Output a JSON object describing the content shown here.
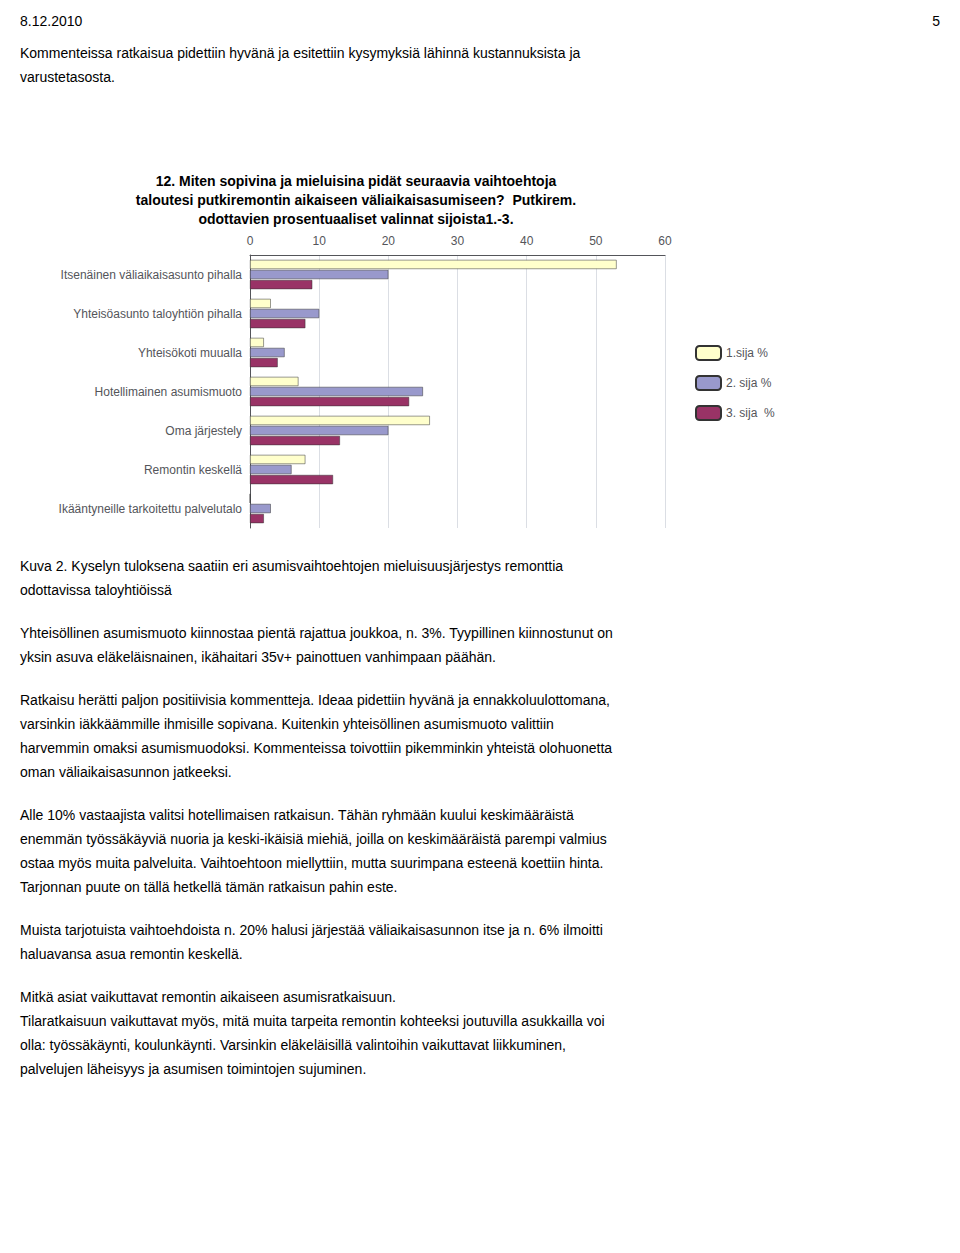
{
  "chart_data": {
    "type": "bar",
    "orientation": "horizontal",
    "title": "12. Miten sopivina ja mieluisina pidät seuraavia vaihtoehtoja\ntaloutesi putkiremontin aikaiseen väliaikaisasumiseen?  Putkirem.\nodottavien prosentuaaliset valinnat sijoista1.-3.",
    "categories": [
      "Itsenäinen väliaikaisasunto pihalla",
      "Yhteisöasunto taloyhtiön pihalla",
      "Yhteisökoti muualla",
      "Hotellimainen asumismuoto",
      "Oma järjestely",
      "Remontin keskellä",
      "Ikääntyneille tarkoitettu palvelutalo"
    ],
    "series": [
      {
        "name": "1.sija %",
        "color": "#FFFFCC",
        "values": [
          53,
          3,
          2,
          7,
          26,
          8,
          0
        ]
      },
      {
        "name": "2. sija %",
        "color": "#9999CC",
        "values": [
          20,
          10,
          5,
          25,
          20,
          6,
          3
        ]
      },
      {
        "name": "3. sija  %",
        "color": "#993366",
        "values": [
          9,
          8,
          4,
          23,
          13,
          12,
          2
        ]
      }
    ],
    "xlim": [
      0,
      60
    ],
    "xticks": [
      0,
      10,
      20,
      30,
      40,
      50,
      60
    ],
    "grid": true,
    "legend": "right",
    "annotations": [
      [
        "8.12.2010",
        "5"
      ],
      [
        "Kommenteissa ratkaisua pidettiin hyvänä ja esitettiin kysymyksiä lähinnä kustannuksista ja",
        "varustetasosta."
      ],
      [
        "Kuva 2. Kyselyn tuloksena saatiin eri asumisvaihtoehtojen mieluisuusjärjestys remonttia",
        "odottavissa taloyhtiöissä"
      ],
      [
        "Yhteisöllinen asumismuoto kiinnostaa pientä rajattua joukkoa, n. 3%. Tyypillinen kiinnostunut on",
        "yksin asuva eläkeläisnainen, ikähaitari 35v+ painottuen vanhimpaan päähän."
      ],
      [
        "Ratkaisu herätti paljon positiivisia kommentteja. Ideaa pidettiin hyvänä ja ennakkoluulottomana,",
        "varsinkin iäkkäämmille ihmisille sopivana. Kuitenkin yhteisöllinen asumismuoto valittiin",
        "harvemmin omaksi asumismuodoksi. Kommenteissa toivottiin pikemminkin yhteistä olohuonetta",
        "oman väliaikaisasunnon jatkeeksi."
      ],
      [
        "Alle 10% vastaajista valitsi hotellimaisen ratkaisun. Tähän ryhmään kuului keskimääräistä",
        "enemmän työssäkäyviä nuoria ja keski-ikäisiä miehiä, joilla on keskimääräistä parempi valmius",
        "ostaa myös muita palveluita. Vaihtoehtoon miellyttiin, mutta suurimpana esteenä koettiin hinta.",
        "Tarjonnan puute on tällä hetkellä tämän ratkaisun pahin este."
      ],
      [
        "Muista tarjotuista vaihtoehdoista n. 20% halusi järjestää väliaikaisasunnon itse ja n. 6% ilmoitti",
        "haluavansa asua remontin keskellä."
      ],
      [
        "Mitkä asiat vaikuttavat remontin aikaiseen asumisratkaisuun.",
        "Tilaratkaisuun vaikuttavat myös, mitä muita tarpeita remontin kohteeksi joutuvilla asukkailla voi",
        "olla: työssäkäynti, koulunkäynti. Varsinkin eläkeläisillä valintoihin vaikuttavat liikkuminen,",
        "palvelujen läheisyys ja asumisen toimintojen sujuminen."
      ]
    ]
  }
}
